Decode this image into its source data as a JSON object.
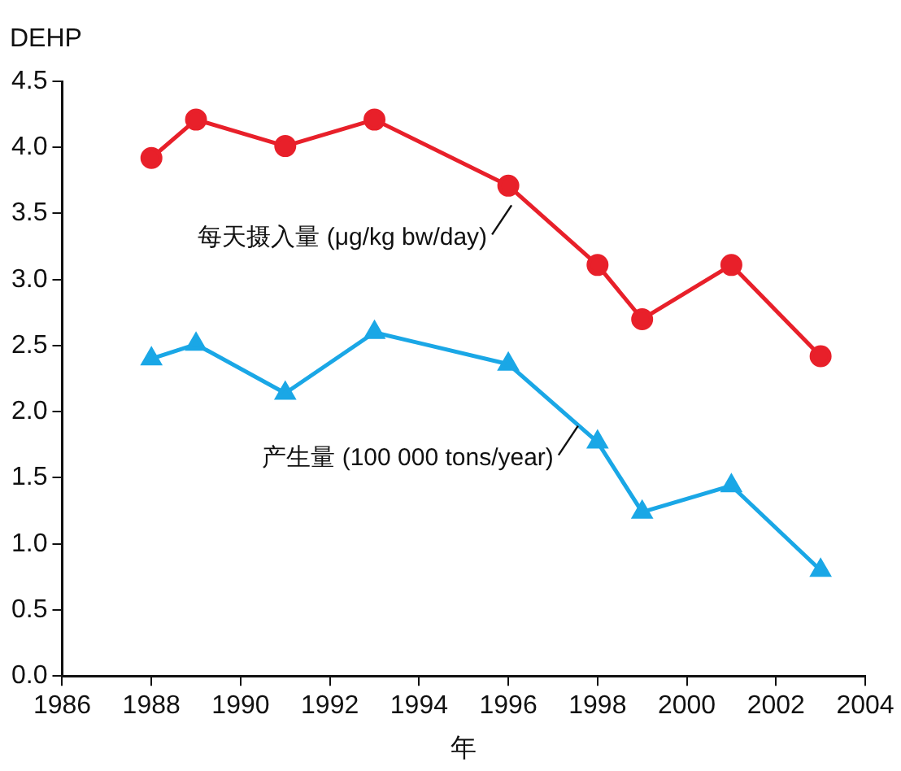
{
  "chart_data": {
    "type": "line",
    "ylabel": "DEHP",
    "xlabel": "年",
    "x": [
      1988,
      1989,
      1991,
      1993,
      1996,
      1998,
      1999,
      2001,
      2003
    ],
    "series": [
      {
        "name": "每天摄入量 (μg/kg bw/day)",
        "color": "#e8202a",
        "marker": "circle",
        "values": [
          3.92,
          4.21,
          4.01,
          4.21,
          3.71,
          3.11,
          2.7,
          3.11,
          2.42
        ]
      },
      {
        "name": "产生量 (100 000 tons/year)",
        "color": "#1aa7e6",
        "marker": "triangle",
        "values": [
          2.4,
          2.51,
          2.14,
          2.6,
          2.36,
          1.77,
          1.24,
          1.44,
          0.8
        ]
      }
    ],
    "xlim": [
      1986,
      2004
    ],
    "xticks": [
      1986,
      1988,
      1990,
      1992,
      1994,
      1996,
      1998,
      2000,
      2002,
      2004
    ],
    "ylim": [
      0,
      4.5
    ],
    "yticks": [
      {
        "value": 0,
        "label": "0.0"
      },
      0.5,
      {
        "value": 1,
        "label": "1.0"
      },
      1.5,
      {
        "value": 2,
        "label": "2.0"
      },
      2.5,
      {
        "value": 3,
        "label": "3.0"
      },
      3.5,
      {
        "value": 4,
        "label": "4.0"
      },
      4.5
    ],
    "grid": false,
    "legend": false,
    "line_style": "solid"
  }
}
